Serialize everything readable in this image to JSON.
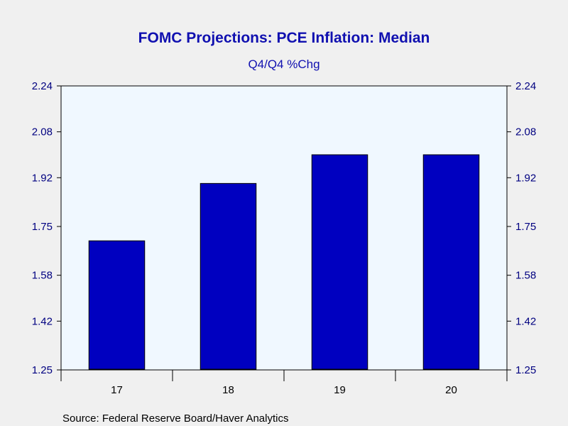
{
  "chart_data": {
    "type": "bar",
    "title": "FOMC Projections: PCE Inflation: Median",
    "subtitle": "Q4/Q4 %Chg",
    "categories": [
      "17",
      "18",
      "19",
      "20"
    ],
    "values": [
      1.7,
      1.9,
      2.0,
      2.0
    ],
    "yticks": [
      "1.25",
      "1.42",
      "1.58",
      "1.75",
      "1.92",
      "2.08",
      "2.24"
    ],
    "ylim": [
      1.25,
      2.24
    ],
    "xlabel": "",
    "ylabel": "",
    "grid": false,
    "legend": "none",
    "source": "Source:  Federal Reserve Board/Haver Analytics",
    "colors": {
      "bar": "#0000c0",
      "plot_bg": "#f0f8ff",
      "page_bg": "#f0f0f0",
      "title": "#1010b0",
      "tick_text": "#000080"
    }
  }
}
